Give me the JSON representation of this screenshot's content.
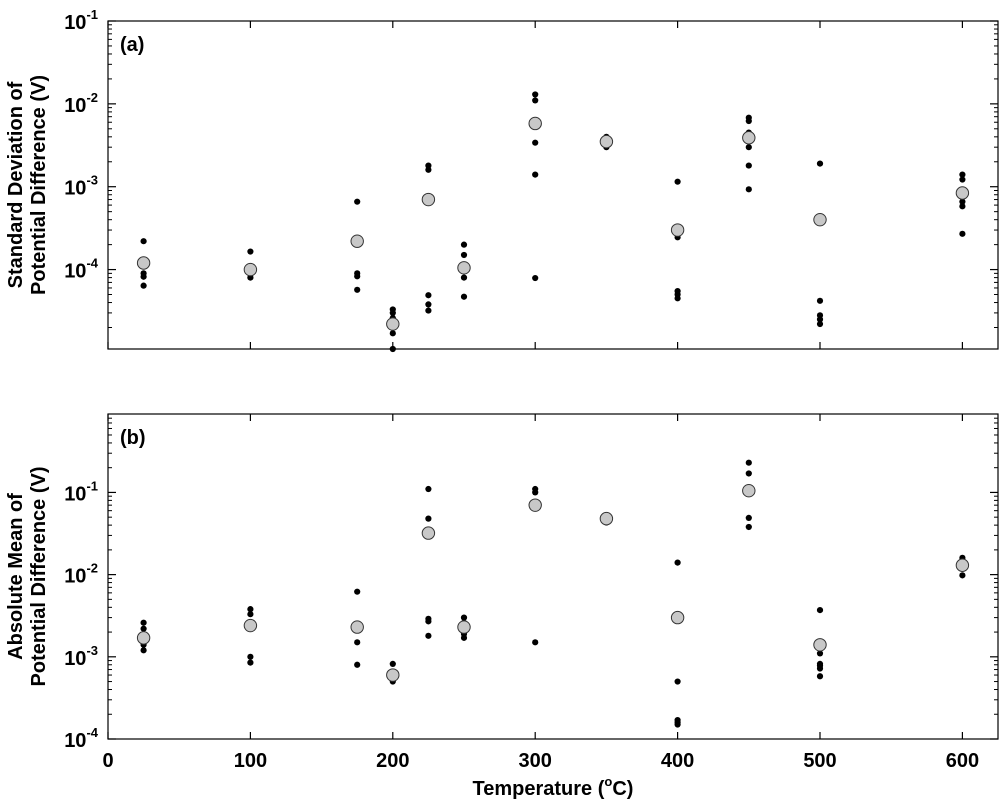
{
  "chart_data": [
    {
      "type": "scatter",
      "panel_label": "(a)",
      "ylabel_lines": [
        "Standard Deviation of",
        "Potential Difference (V)"
      ],
      "xlabel": "",
      "x_scale": "linear",
      "y_scale": "log",
      "xlim": [
        0,
        625
      ],
      "ylim": [
        1.1e-05,
        0.1
      ],
      "x_ticks": [
        0,
        100,
        200,
        300,
        400,
        500,
        600
      ],
      "show_x_tick_labels": false,
      "y_ticks": [
        {
          "value": 0.0001,
          "base": "10",
          "exp": "-4"
        },
        {
          "value": 0.001,
          "base": "10",
          "exp": "-3"
        },
        {
          "value": 0.01,
          "base": "10",
          "exp": "-2"
        },
        {
          "value": 0.1,
          "base": "10",
          "exp": "-1"
        }
      ],
      "grid": false,
      "series": [
        {
          "marker": "small-black-dot",
          "color": "#000000",
          "points": [
            [
              25,
              0.00022
            ],
            [
              25,
              0.00013
            ],
            [
              25,
              9e-05
            ],
            [
              25,
              8.2e-05
            ],
            [
              25,
              6.4e-05
            ],
            [
              100,
              0.000165
            ],
            [
              100,
              0.000105
            ],
            [
              100,
              8.8e-05
            ],
            [
              100,
              8e-05
            ],
            [
              175,
              0.00066
            ],
            [
              175,
              0.00024
            ],
            [
              175,
              0.0002
            ],
            [
              175,
              9e-05
            ],
            [
              175,
              8.3e-05
            ],
            [
              175,
              5.7e-05
            ],
            [
              200,
              3.3e-05
            ],
            [
              200,
              3e-05
            ],
            [
              200,
              2.6e-05
            ],
            [
              200,
              1.7e-05
            ],
            [
              200,
              1.1e-05
            ],
            [
              225,
              0.0018
            ],
            [
              225,
              0.0016
            ],
            [
              225,
              0.00068
            ],
            [
              225,
              4.9e-05
            ],
            [
              225,
              3.8e-05
            ],
            [
              225,
              3.2e-05
            ],
            [
              250,
              0.0002
            ],
            [
              250,
              0.00015
            ],
            [
              250,
              0.0001
            ],
            [
              250,
              8e-05
            ],
            [
              250,
              4.7e-05
            ],
            [
              300,
              0.013
            ],
            [
              300,
              0.011
            ],
            [
              300,
              0.0058
            ],
            [
              300,
              0.0034
            ],
            [
              300,
              0.0014
            ],
            [
              300,
              7.9e-05
            ],
            [
              350,
              0.004
            ],
            [
              350,
              0.0037
            ],
            [
              350,
              0.0034
            ],
            [
              350,
              0.0031
            ],
            [
              350,
              0.003
            ],
            [
              400,
              0.00115
            ],
            [
              400,
              0.00027
            ],
            [
              400,
              0.000245
            ],
            [
              400,
              5.5e-05
            ],
            [
              400,
              5e-05
            ],
            [
              400,
              4.5e-05
            ],
            [
              450,
              0.0068
            ],
            [
              450,
              0.0062
            ],
            [
              450,
              0.0045
            ],
            [
              450,
              0.003
            ],
            [
              450,
              0.0018
            ],
            [
              450,
              0.00093
            ],
            [
              500,
              0.0019
            ],
            [
              500,
              0.00041
            ],
            [
              500,
              4.2e-05
            ],
            [
              500,
              2.8e-05
            ],
            [
              500,
              2.5e-05
            ],
            [
              500,
              2.2e-05
            ],
            [
              600,
              0.0014
            ],
            [
              600,
              0.00122
            ],
            [
              600,
              0.00082
            ],
            [
              600,
              0.00066
            ],
            [
              600,
              0.00058
            ],
            [
              600,
              0.00027
            ]
          ]
        },
        {
          "marker": "gray-circle",
          "color": "#c8c8c8",
          "points": [
            [
              25,
              0.00012
            ],
            [
              100,
              0.0001
            ],
            [
              175,
              0.00022
            ],
            [
              200,
              2.2e-05
            ],
            [
              225,
              0.0007
            ],
            [
              250,
              0.000105
            ],
            [
              300,
              0.0058
            ],
            [
              350,
              0.0035
            ],
            [
              400,
              0.0003
            ],
            [
              450,
              0.0039
            ],
            [
              500,
              0.0004
            ],
            [
              600,
              0.00084
            ]
          ]
        }
      ]
    },
    {
      "type": "scatter",
      "panel_label": "(b)",
      "ylabel_lines": [
        "Absolute Mean of",
        "Potential Difference (V)"
      ],
      "xlabel": "Temperature (",
      "xlabel_sup": "o",
      "xlabel_suffix": "C)",
      "x_scale": "linear",
      "y_scale": "log",
      "xlim": [
        0,
        625
      ],
      "ylim": [
        0.0001,
        0.9
      ],
      "x_ticks": [
        0,
        100,
        200,
        300,
        400,
        500,
        600
      ],
      "show_x_tick_labels": true,
      "y_ticks": [
        {
          "value": 0.0001,
          "base": "10",
          "exp": "-4"
        },
        {
          "value": 0.001,
          "base": "10",
          "exp": "-3"
        },
        {
          "value": 0.01,
          "base": "10",
          "exp": "-2"
        },
        {
          "value": 0.1,
          "base": "10",
          "exp": "-1"
        }
      ],
      "grid": false,
      "series": [
        {
          "marker": "small-black-dot",
          "color": "#000000",
          "points": [
            [
              25,
              0.0026
            ],
            [
              25,
              0.0022
            ],
            [
              25,
              0.0017
            ],
            [
              25,
              0.0014
            ],
            [
              25,
              0.0012
            ],
            [
              100,
              0.0038
            ],
            [
              100,
              0.0033
            ],
            [
              100,
              0.0025
            ],
            [
              100,
              0.001
            ],
            [
              100,
              0.00085
            ],
            [
              175,
              0.0062
            ],
            [
              175,
              0.0023
            ],
            [
              175,
              0.0015
            ],
            [
              175,
              0.0008
            ],
            [
              200,
              0.00082
            ],
            [
              200,
              0.0006
            ],
            [
              200,
              0.00055
            ],
            [
              200,
              0.0005
            ],
            [
              225,
              0.11
            ],
            [
              225,
              0.048
            ],
            [
              225,
              0.0029
            ],
            [
              225,
              0.0027
            ],
            [
              225,
              0.0018
            ],
            [
              250,
              0.003
            ],
            [
              250,
              0.0026
            ],
            [
              250,
              0.0022
            ],
            [
              250,
              0.0019
            ],
            [
              250,
              0.0017
            ],
            [
              300,
              0.11
            ],
            [
              300,
              0.1
            ],
            [
              300,
              0.07
            ],
            [
              300,
              0.068
            ],
            [
              300,
              0.0015
            ],
            [
              350,
              0.05
            ],
            [
              350,
              0.048
            ],
            [
              350,
              0.045
            ],
            [
              350,
              0.043
            ],
            [
              400,
              0.014
            ],
            [
              400,
              0.0005
            ],
            [
              400,
              0.00017
            ],
            [
              400,
              0.00016
            ],
            [
              400,
              0.00015
            ],
            [
              450,
              0.23
            ],
            [
              450,
              0.17
            ],
            [
              450,
              0.049
            ],
            [
              450,
              0.038
            ],
            [
              500,
              0.0037
            ],
            [
              500,
              0.0011
            ],
            [
              500,
              0.00082
            ],
            [
              500,
              0.00078
            ],
            [
              500,
              0.00072
            ],
            [
              500,
              0.00058
            ],
            [
              600,
              0.016
            ],
            [
              600,
              0.015
            ],
            [
              600,
              0.013
            ],
            [
              600,
              0.0098
            ]
          ]
        },
        {
          "marker": "gray-circle",
          "color": "#c8c8c8",
          "points": [
            [
              25,
              0.0017
            ],
            [
              100,
              0.0024
            ],
            [
              175,
              0.0023
            ],
            [
              200,
              0.0006
            ],
            [
              225,
              0.032
            ],
            [
              250,
              0.0023
            ],
            [
              300,
              0.07
            ],
            [
              350,
              0.048
            ],
            [
              400,
              0.003
            ],
            [
              450,
              0.105
            ],
            [
              500,
              0.0014
            ],
            [
              600,
              0.013
            ]
          ]
        }
      ]
    }
  ]
}
